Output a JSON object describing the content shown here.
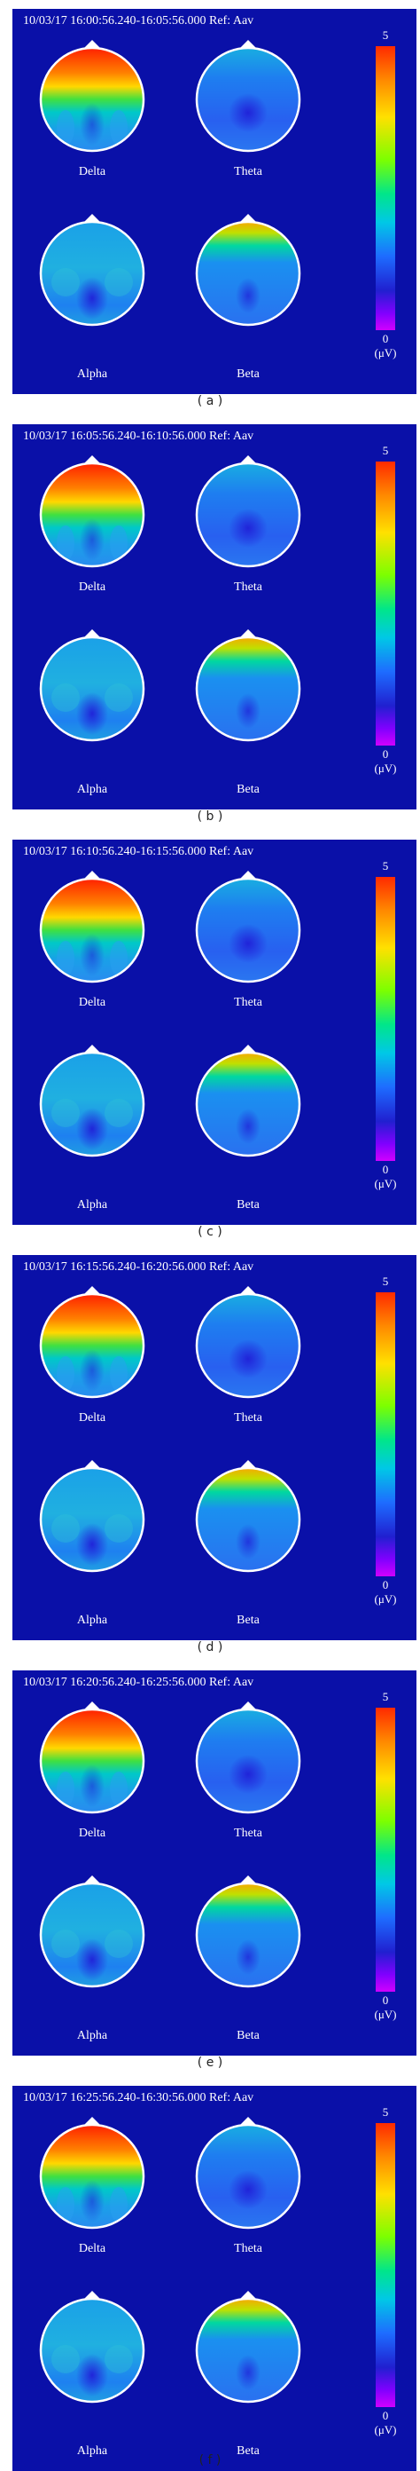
{
  "panels": [
    {
      "header": "10/03/17 16:00:56.240-16:05:56.000 Ref: Aav",
      "caption": "( a )",
      "delta_label": "Delta",
      "theta_label": "Theta",
      "alpha_label": "Alpha",
      "beta_label": "Beta",
      "scale_max": "5",
      "scale_min": "0",
      "scale_unit": "(μV)"
    },
    {
      "header": "10/03/17 16:05:56.240-16:10:56.000 Ref: Aav",
      "caption": "( b )",
      "delta_label": "Delta",
      "theta_label": "Theta",
      "alpha_label": "Alpha",
      "beta_label": "Beta",
      "scale_max": "5",
      "scale_min": "0",
      "scale_unit": "(μV)"
    },
    {
      "header": "10/03/17 16:10:56.240-16:15:56.000 Ref: Aav",
      "caption": "( c )",
      "delta_label": "Delta",
      "theta_label": "Theta",
      "alpha_label": "Alpha",
      "beta_label": "Beta",
      "scale_max": "5",
      "scale_min": "0",
      "scale_unit": "(μV)"
    },
    {
      "header": "10/03/17 16:15:56.240-16:20:56.000 Ref: Aav",
      "caption": "( d )",
      "delta_label": "Delta",
      "theta_label": "Theta",
      "alpha_label": "Alpha",
      "beta_label": "Beta",
      "scale_max": "5",
      "scale_min": "0",
      "scale_unit": "(μV)"
    },
    {
      "header": "10/03/17 16:20:56.240-16:25:56.000 Ref: Aav",
      "caption": "( e )",
      "delta_label": "Delta",
      "theta_label": "Theta",
      "alpha_label": "Alpha",
      "beta_label": "Beta",
      "scale_max": "5",
      "scale_min": "0",
      "scale_unit": "(μV)"
    },
    {
      "header": "10/03/17 16:25:56.240-16:30:56.000 Ref: Aav",
      "caption": "( f )",
      "delta_label": "Delta",
      "theta_label": "Theta",
      "alpha_label": "Alpha",
      "beta_label": "Beta",
      "scale_max": "5",
      "scale_min": "0",
      "scale_unit": "(μV)"
    }
  ],
  "colors": {
    "panel_background": "#0a10a8",
    "colorbar": [
      "#ff2a00",
      "#ff8a00",
      "#ffe000",
      "#7cff00",
      "#00e68a",
      "#00c8e6",
      "#1e6cff",
      "#2020d0",
      "#8000ff",
      "#d000ff"
    ]
  }
}
